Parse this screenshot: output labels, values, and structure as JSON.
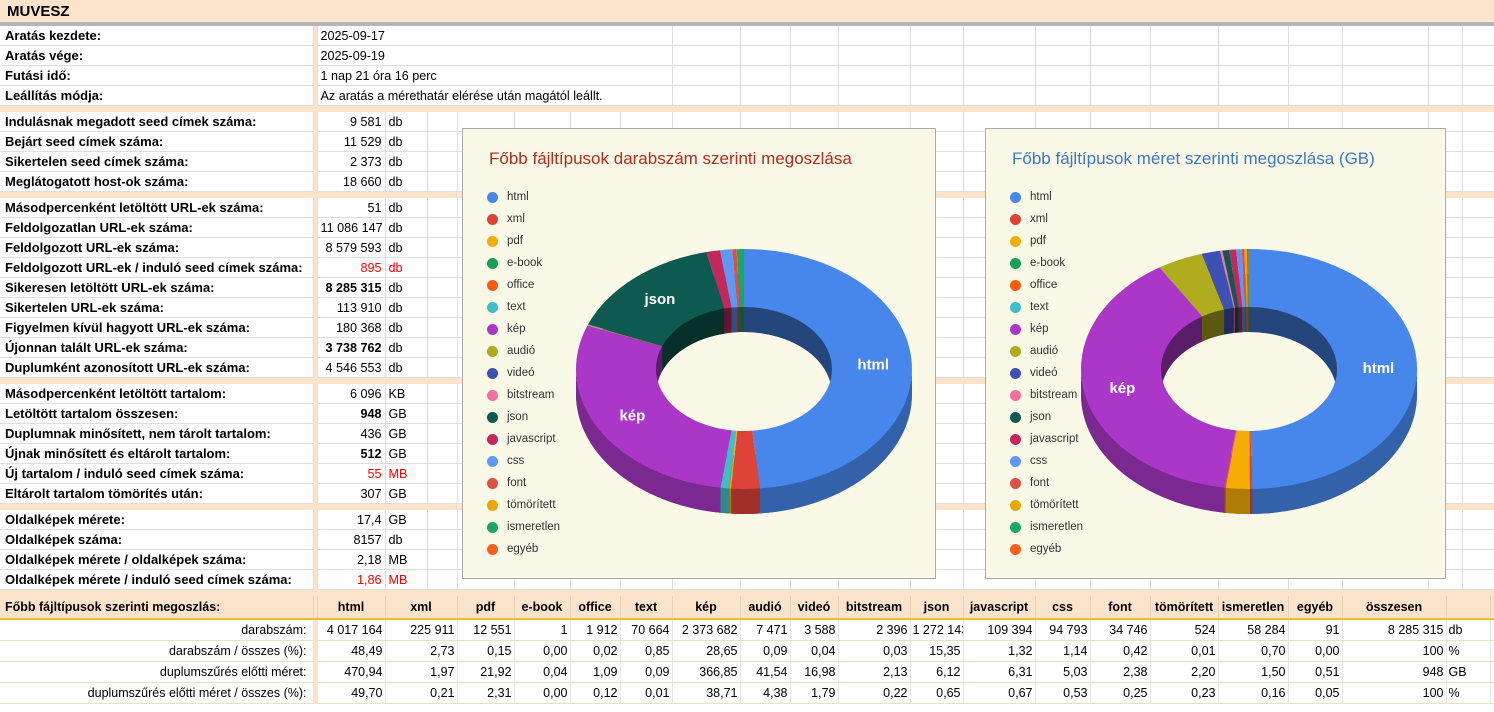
{
  "sheet": {
    "title": "MUVESZ",
    "sections": [
      {
        "rows": [
          {
            "label": "Aratás kezdete:",
            "value": "2025-09-17",
            "unit": "",
            "text": true
          },
          {
            "label": "Aratás vége:",
            "value": "2025-09-19",
            "unit": "",
            "text": true
          },
          {
            "label": "Futási idő:",
            "value": "1 nap 21 óra 16 perc",
            "unit": "",
            "text": true
          },
          {
            "label": "Leállítás módja:",
            "value": "Az aratás a mérethatár elérése után magától leállt.",
            "unit": "",
            "text": true
          }
        ]
      },
      {
        "rows": [
          {
            "label": "Indulásnak megadott seed címek száma:",
            "value": "9 581",
            "unit": "db"
          },
          {
            "label": "Bejárt seed címek száma:",
            "value": "11 529",
            "unit": "db"
          },
          {
            "label": "Sikertelen seed címek száma:",
            "value": "2 373",
            "unit": "db"
          },
          {
            "label": "Meglátogatott host-ok száma:",
            "value": "18 660",
            "unit": "db"
          }
        ]
      },
      {
        "rows": [
          {
            "label": "Másodpercenként letöltött URL-ek száma:",
            "value": "51",
            "unit": "db"
          },
          {
            "label": "Feldolgozatlan URL-ek száma:",
            "value": "11 086 147",
            "unit": "db"
          },
          {
            "label": "Feldolgozott URL-ek száma:",
            "value": "8 579 593",
            "unit": "db"
          },
          {
            "label": "Feldolgozott URL-ek / induló seed címek száma:",
            "value": "895",
            "unit": "db",
            "color": "red"
          },
          {
            "label": "Sikeresen letöltött URL-ek száma:",
            "value": "8 285 315",
            "unit": "db",
            "weight": "bold"
          },
          {
            "label": "Sikertelen URL-ek száma:",
            "value": "113 910",
            "unit": "db"
          },
          {
            "label": "Figyelmen kívül hagyott URL-ek száma:",
            "value": "180 368",
            "unit": "db"
          },
          {
            "label": "Újonnan talált URL-ek száma:",
            "value": "3 738 762",
            "unit": "db",
            "weight": "bold"
          },
          {
            "label": "Duplumként azonosított URL-ek száma:",
            "value": "4 546 553",
            "unit": "db"
          }
        ]
      },
      {
        "rows": [
          {
            "label": "Másodpercenként letöltött tartalom:",
            "value": "6 096",
            "unit": "KB"
          },
          {
            "label": "Letöltött tartalom összesen:",
            "value": "948",
            "unit": "GB",
            "weight": "bold"
          },
          {
            "label": "Duplumnak minősített, nem tárolt tartalom:",
            "value": "436",
            "unit": "GB"
          },
          {
            "label": "Újnak minősített és eltárolt tartalom:",
            "value": "512",
            "unit": "GB",
            "weight": "bold"
          },
          {
            "label": "Új tartalom / induló seed címek száma:",
            "value": "55",
            "unit": "MB",
            "color": "red"
          },
          {
            "label": "Eltárolt tartalom tömörítés után:",
            "value": "307",
            "unit": "GB"
          }
        ]
      },
      {
        "rows": [
          {
            "label": "Oldalképek mérete:",
            "value": "17,4",
            "unit": "GB"
          },
          {
            "label": "Oldalképek száma:",
            "value": "8157",
            "unit": "db"
          },
          {
            "label": "Oldalképek mérete  / oldalképek száma:",
            "value": "2,18",
            "unit": "MB"
          },
          {
            "label": "Oldalképek mérete  / induló seed címek száma:",
            "value": "1,86",
            "unit": "MB",
            "color": "red"
          }
        ]
      }
    ],
    "filetype_table": {
      "label": "Főbb fájltípusok szerinti megoszlás:",
      "columns": [
        "html",
        "xml",
        "pdf",
        "e-book",
        "office",
        "text",
        "kép",
        "audió",
        "videó",
        "bitstream",
        "json",
        "javascript",
        "css",
        "font",
        "tömörített",
        "ismeretlen",
        "egyéb",
        "összesen"
      ],
      "rows": [
        {
          "label": "darabszám:",
          "values": [
            "4 017 164",
            "225 911",
            "12 551",
            "1",
            "1 912",
            "70 664",
            "2 373 682",
            "7 471",
            "3 588",
            "2 396",
            "1 272 143",
            "109 394",
            "94 793",
            "34 746",
            "524",
            "58 284",
            "91",
            "8 285 315"
          ],
          "unit": "db"
        },
        {
          "label": "darabszám / összes (%):",
          "values": [
            "48,49",
            "2,73",
            "0,15",
            "0,00",
            "0,02",
            "0,85",
            "28,65",
            "0,09",
            "0,04",
            "0,03",
            "15,35",
            "1,32",
            "1,14",
            "0,42",
            "0,01",
            "0,70",
            "0,00",
            "100"
          ],
          "unit": "%"
        },
        {
          "label": "duplumszűrés előtti méret:",
          "values": [
            "470,94",
            "1,97",
            "21,92",
            "0,04",
            "1,09",
            "0,09",
            "366,85",
            "41,54",
            "16,98",
            "2,13",
            "6,12",
            "6,31",
            "5,03",
            "2,38",
            "2,20",
            "1,50",
            "0,51",
            "948"
          ],
          "unit": "GB"
        },
        {
          "label": "duplumszűrés előtti méret / összes (%):",
          "values": [
            "49,70",
            "0,21",
            "2,31",
            "0,00",
            "0,12",
            "0,01",
            "38,71",
            "4,38",
            "1,79",
            "0,22",
            "0,65",
            "0,67",
            "0,53",
            "0,25",
            "0,23",
            "0,16",
            "0,05",
            "100"
          ],
          "unit": "%"
        }
      ]
    }
  },
  "palette": [
    "#4787EC",
    "#DE4338",
    "#F3AD05",
    "#17A05A",
    "#F75B10",
    "#41BDC6",
    "#AB37C9",
    "#AFAC1F",
    "#3D51B5",
    "#F4709F",
    "#0E5A50",
    "#C22A5E",
    "#5E97F6",
    "#DD5145",
    "#E9A800",
    "#19A763",
    "#FB5D1D"
  ],
  "chart_data": [
    {
      "type": "pie",
      "style": "3d-donut",
      "title": "Főbb fájltípusok darabszám szerinti megoszlása",
      "title_color": "#AE2E1F",
      "unit": "%",
      "legend_position": "left",
      "categories": [
        "html",
        "xml",
        "pdf",
        "e-book",
        "office",
        "text",
        "kép",
        "audió",
        "videó",
        "bitstream",
        "json",
        "javascript",
        "css",
        "font",
        "tömörített",
        "ismeretlen",
        "egyéb"
      ],
      "values": [
        48.49,
        2.73,
        0.15,
        0.0,
        0.02,
        0.85,
        28.65,
        0.09,
        0.04,
        0.03,
        15.35,
        1.32,
        1.14,
        0.42,
        0.01,
        0.7,
        0.0
      ],
      "slice_labels_visible": [
        "html",
        "kép",
        "json"
      ]
    },
    {
      "type": "pie",
      "style": "3d-donut",
      "title": "Főbb fájltípusok méret szerinti megoszlása (GB)",
      "title_color": "#3D78C0",
      "unit": "%",
      "legend_position": "left",
      "categories": [
        "html",
        "xml",
        "pdf",
        "e-book",
        "office",
        "text",
        "kép",
        "audió",
        "videó",
        "bitstream",
        "json",
        "javascript",
        "css",
        "font",
        "tömörített",
        "ismeretlen",
        "egyéb"
      ],
      "values": [
        49.7,
        0.21,
        2.31,
        0.0,
        0.12,
        0.01,
        38.71,
        4.38,
        1.79,
        0.22,
        0.65,
        0.67,
        0.53,
        0.25,
        0.23,
        0.16,
        0.05
      ],
      "slice_labels_visible": [
        "html",
        "kép"
      ]
    }
  ]
}
